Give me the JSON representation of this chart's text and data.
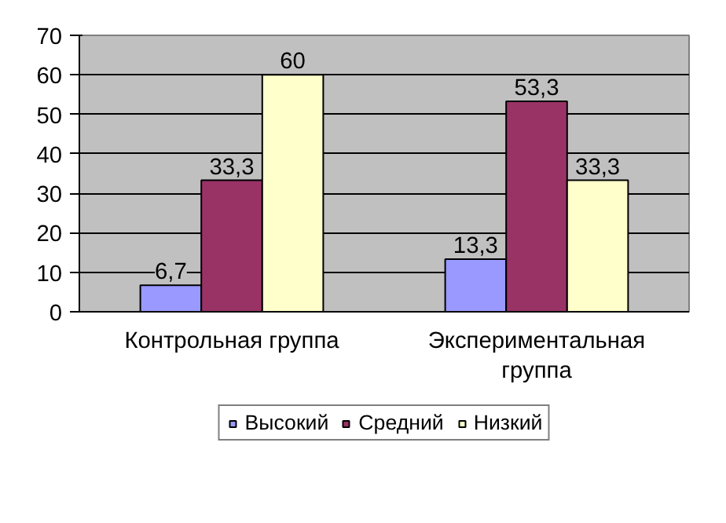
{
  "chart_data": {
    "type": "bar",
    "categories": [
      "Контрольная группа",
      "Экспериментальная группа"
    ],
    "series": [
      {
        "name": "Высокий",
        "color": "#9999ff",
        "values": [
          6.7,
          13.3
        ],
        "value_labels": [
          "6,7",
          "13,3"
        ]
      },
      {
        "name": "Средний",
        "color": "#993366",
        "values": [
          33.3,
          53.3
        ],
        "value_labels": [
          "33,3",
          "53,3"
        ]
      },
      {
        "name": "Низкий",
        "color": "#ffffcc",
        "values": [
          60,
          33.3
        ],
        "value_labels": [
          "60",
          "33,3"
        ]
      }
    ],
    "ylim": [
      0,
      70
    ],
    "yticks": [
      0,
      10,
      20,
      30,
      40,
      50,
      60,
      70
    ],
    "grid": "y",
    "legend": "bottom"
  }
}
